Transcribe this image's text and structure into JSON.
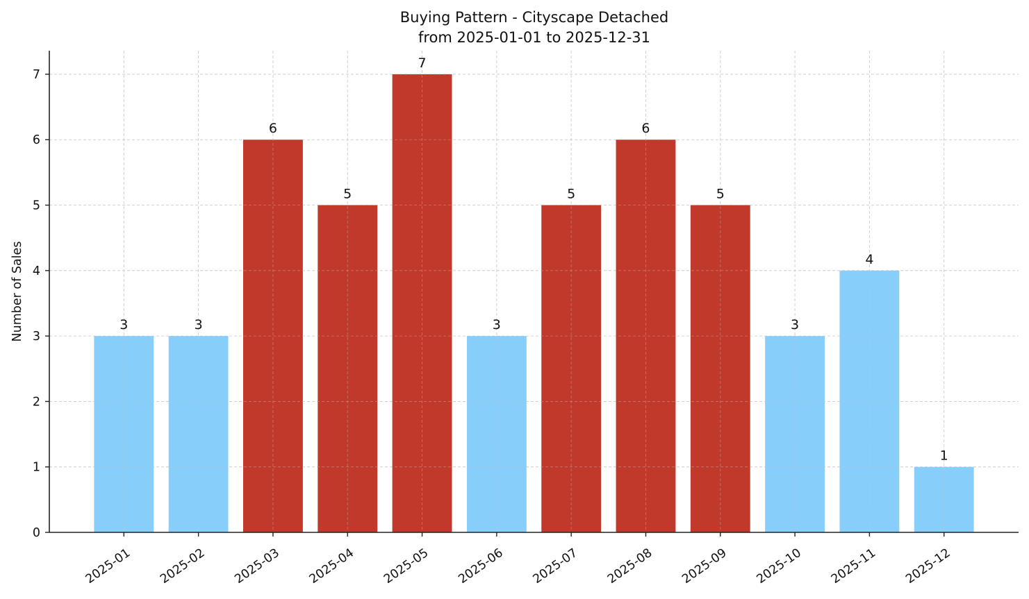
{
  "chart_data": {
    "type": "bar",
    "title": "Buying Pattern - Cityscape Detached",
    "subtitle": "from 2025-01-01 to 2025-12-31",
    "xlabel": "",
    "ylabel": "Number of Sales",
    "categories": [
      "2025-01",
      "2025-02",
      "2025-03",
      "2025-04",
      "2025-05",
      "2025-06",
      "2025-07",
      "2025-08",
      "2025-09",
      "2025-10",
      "2025-11",
      "2025-12"
    ],
    "values": [
      3,
      3,
      6,
      5,
      7,
      3,
      5,
      6,
      5,
      3,
      4,
      1
    ],
    "bar_colors": [
      "#87cefa",
      "#87cefa",
      "#c0392b",
      "#c0392b",
      "#c0392b",
      "#87cefa",
      "#c0392b",
      "#c0392b",
      "#c0392b",
      "#87cefa",
      "#87cefa",
      "#87cefa"
    ],
    "highlight_rule": "values >= 5 shown in red, others in light blue",
    "colors": {
      "high": "#c0392b",
      "low": "#87cefa"
    },
    "ylim": [
      0,
      7.36
    ],
    "yticks": [
      0,
      1,
      2,
      3,
      4,
      5,
      6,
      7
    ],
    "grid": true,
    "grid_style": "dashed",
    "legend": null,
    "data_labels": true
  }
}
